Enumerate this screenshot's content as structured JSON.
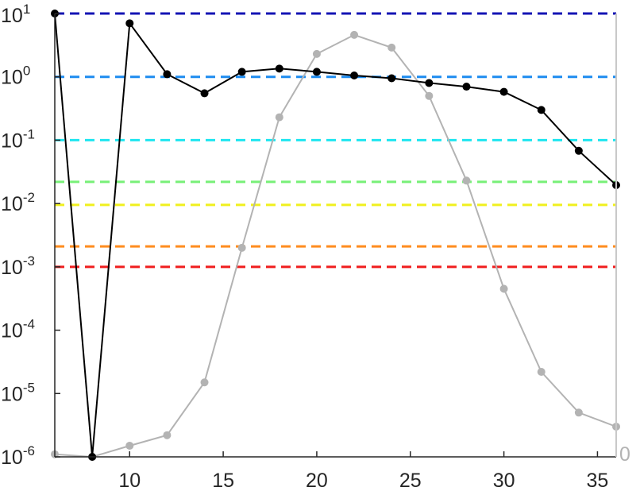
{
  "chart_data": {
    "type": "line",
    "title": "",
    "xlabel": "",
    "ylabel": "",
    "x_range": [
      6,
      36
    ],
    "y_scale": "log",
    "y_range": [
      1e-06,
      10
    ],
    "x_ticks": [
      {
        "value": 10,
        "label": "10"
      },
      {
        "value": 15,
        "label": "15"
      },
      {
        "value": 20,
        "label": "20"
      },
      {
        "value": 25,
        "label": "25"
      },
      {
        "value": 30,
        "label": "30"
      },
      {
        "value": 35,
        "label": "35"
      }
    ],
    "y_ticks": [
      {
        "value": 1e-06,
        "base": "10",
        "exp": "-6"
      },
      {
        "value": 1e-05,
        "base": "10",
        "exp": "-5"
      },
      {
        "value": 0.0001,
        "base": "10",
        "exp": "-4"
      },
      {
        "value": 0.001,
        "base": "10",
        "exp": "-3"
      },
      {
        "value": 0.01,
        "base": "10",
        "exp": "-2"
      },
      {
        "value": 0.1,
        "base": "10",
        "exp": "-1"
      },
      {
        "value": 1,
        "base": "10",
        "exp": "0"
      },
      {
        "value": 10,
        "base": "10",
        "exp": "1"
      }
    ],
    "right_axis_label": "0",
    "grid": false,
    "reference_lines": [
      {
        "y": 10,
        "color": "#1414b4"
      },
      {
        "y": 1,
        "color": "#1e8cf0"
      },
      {
        "y": 0.1,
        "color": "#1ee6f0"
      },
      {
        "y": 0.022,
        "color": "#78f078"
      },
      {
        "y": 0.0095,
        "color": "#f0f01e"
      },
      {
        "y": 0.0021,
        "color": "#ff8c1e"
      },
      {
        "y": 0.001,
        "color": "#f01e1e"
      }
    ],
    "series": [
      {
        "color": "#000000",
        "x": [
          6,
          8,
          10,
          12,
          14,
          16,
          18,
          20,
          22,
          24,
          26,
          28,
          30,
          32,
          34,
          36
        ],
        "y": [
          10,
          1e-06,
          7,
          1.1,
          0.55,
          1.2,
          1.35,
          1.2,
          1.05,
          0.95,
          0.8,
          0.7,
          0.58,
          0.3,
          0.068,
          0.0195
        ]
      },
      {
        "color": "#b3b3b3",
        "x": [
          6,
          8,
          10,
          12,
          14,
          16,
          18,
          20,
          22,
          24,
          26,
          28,
          30,
          32,
          34,
          36
        ],
        "y": [
          1.1e-06,
          1e-06,
          1.5e-06,
          2.2e-06,
          1.5e-05,
          0.002,
          0.23,
          2.3,
          4.6,
          2.9,
          0.5,
          0.023,
          0.00045,
          2.2e-05,
          5e-06,
          3e-06
        ]
      }
    ]
  }
}
